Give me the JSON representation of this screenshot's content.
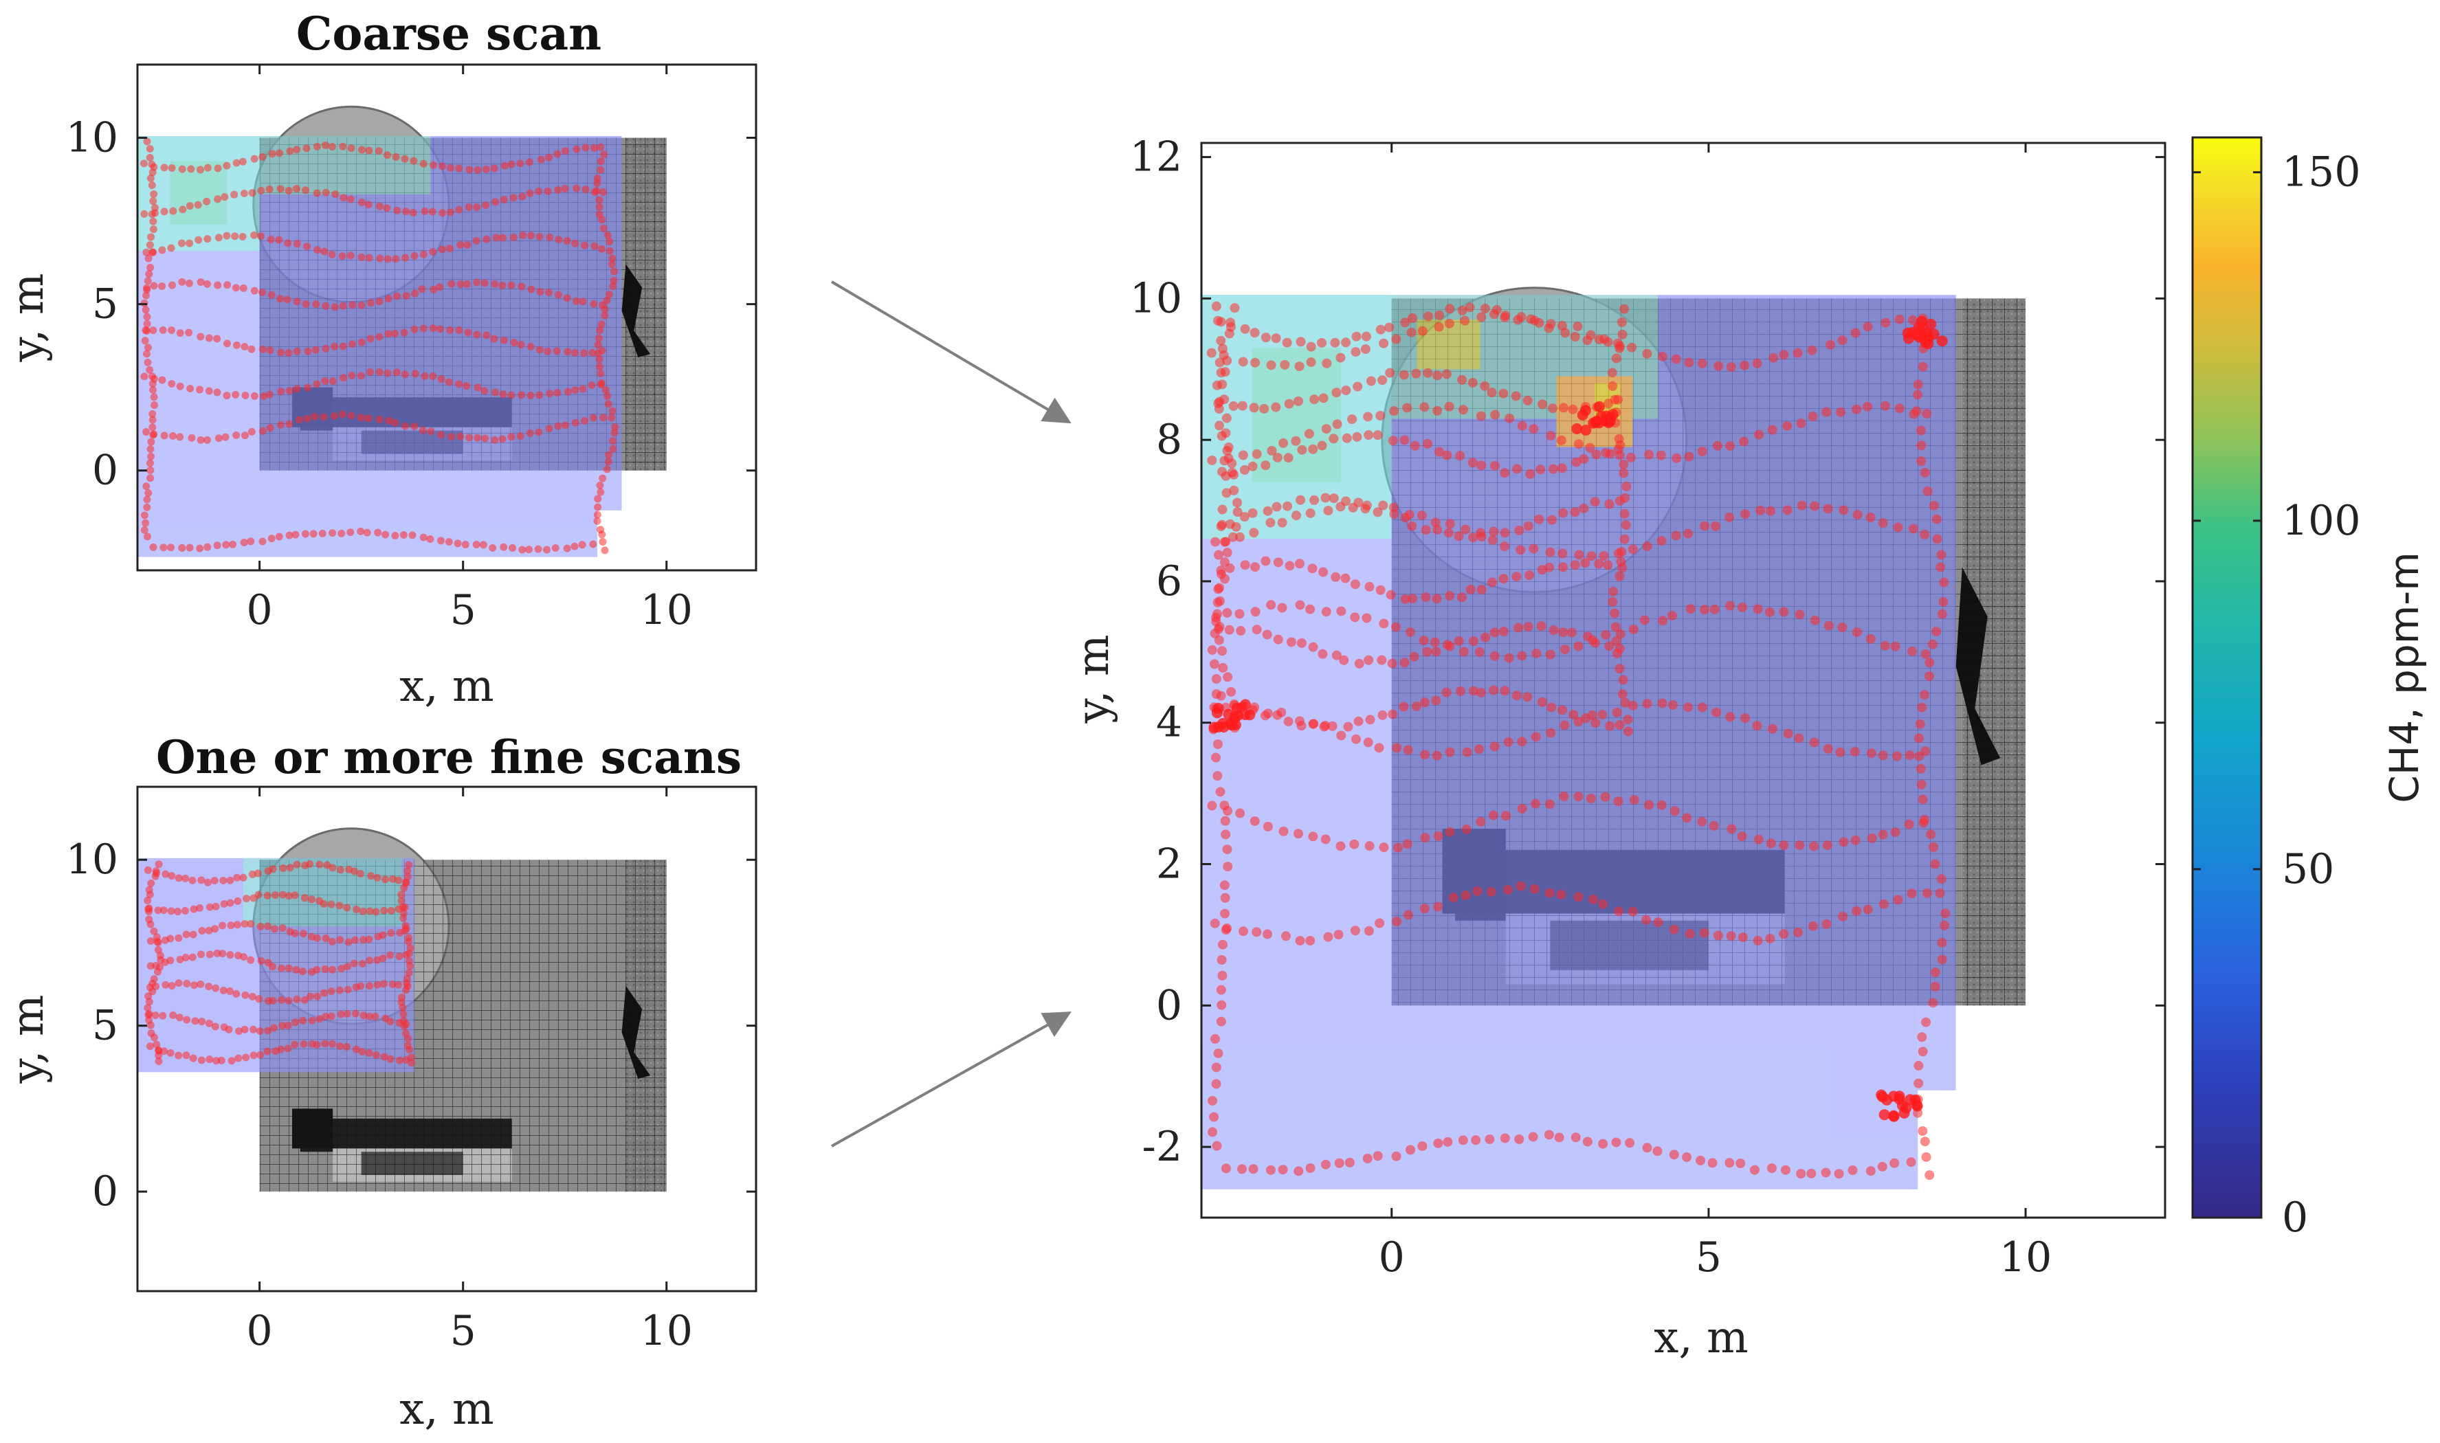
{
  "chart_data": [
    {
      "type": "heatmap",
      "title": "Coarse scan",
      "xlabel": "x, m",
      "ylabel": "y, m",
      "xlim": [
        -3,
        12.2
      ],
      "ylim": [
        -3,
        12.2
      ],
      "xticks": [
        "0",
        "5",
        "10"
      ],
      "yticks": [
        "0",
        "5",
        "10"
      ],
      "grid": false,
      "overlay": "red measurement path points over a CH4 concentration map and site image"
    },
    {
      "type": "heatmap",
      "title": "One or more fine scans",
      "xlabel": "x, m",
      "ylabel": "y, m",
      "xlim": [
        -3,
        12.2
      ],
      "ylim": [
        -3,
        12.2
      ],
      "xticks": [
        "0",
        "5",
        "10"
      ],
      "yticks": [
        "0",
        "5",
        "10"
      ],
      "grid": false
    },
    {
      "type": "heatmap",
      "title": "",
      "xlabel": "x, m",
      "ylabel": "y, m",
      "xlim": [
        -3,
        12.2
      ],
      "ylim": [
        -3,
        12.2
      ],
      "xticks": [
        "0",
        "5",
        "10"
      ],
      "yticks": [
        "-2",
        "0",
        "2",
        "4",
        "6",
        "8",
        "10",
        "12"
      ],
      "colorbar": {
        "label": "CH4, ppm-m",
        "range": [
          0,
          155
        ],
        "ticks": [
          "0",
          "50",
          "100",
          "150"
        ],
        "colormap": "parula"
      },
      "hotspots": [
        {
          "x": 3.2,
          "y": 8.3,
          "value": 150
        },
        {
          "x": 4.2,
          "y": 9.2,
          "value": 110
        },
        {
          "x": -1.2,
          "y": 9.0,
          "value": 95
        }
      ]
    }
  ],
  "arrows": {
    "color": "#7f7f7f"
  }
}
